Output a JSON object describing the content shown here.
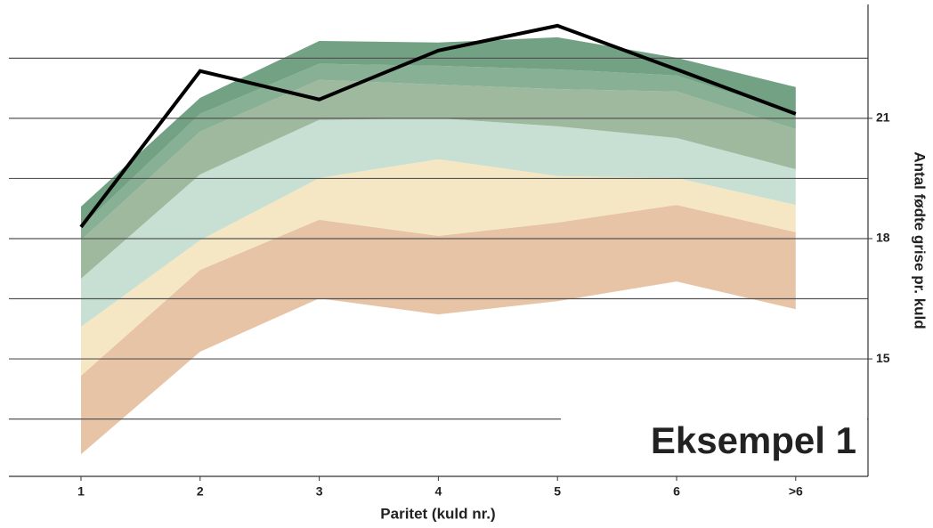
{
  "chart_data": {
    "type": "fan",
    "x_label": "Paritet (kuld nr.)",
    "y_label": "Antal fødte grise pr. kuld",
    "annotation": "Eksempel 1",
    "categories": [
      "1",
      "2",
      "3",
      "4",
      "5",
      "6",
      ">6"
    ],
    "ylim": [
      12.07,
      23.84
    ],
    "yticks": [
      15,
      18,
      21
    ],
    "grid_lines": [
      13.5,
      15,
      16.5,
      18,
      19.5,
      21,
      22.5
    ],
    "y_axis_side": "right",
    "band_colors": [
      "#e8c4a6",
      "#f6e7c4",
      "#c7e0d3",
      "#9fb99e",
      "#88b094",
      "#72a283"
    ],
    "boundaries": [
      [
        12.62,
        15.18,
        16.51,
        16.11,
        16.44,
        16.93,
        16.24
      ],
      [
        14.58,
        17.22,
        18.47,
        18.07,
        18.4,
        18.84,
        18.16
      ],
      [
        15.8,
        17.96,
        19.51,
        19.98,
        19.56,
        19.51,
        18.84
      ],
      [
        17.0,
        19.6,
        20.96,
        21.0,
        20.8,
        20.51,
        19.73
      ],
      [
        17.96,
        20.67,
        21.96,
        21.84,
        21.73,
        21.67,
        20.73
      ],
      [
        18.29,
        21.11,
        22.36,
        22.31,
        22.22,
        22.07,
        21.11
      ],
      [
        18.8,
        21.51,
        22.93,
        22.89,
        23.02,
        22.51,
        21.78
      ]
    ],
    "line": {
      "color": "#000000",
      "values": [
        18.29,
        22.18,
        21.47,
        22.69,
        23.31,
        22.22,
        21.11
      ]
    }
  }
}
